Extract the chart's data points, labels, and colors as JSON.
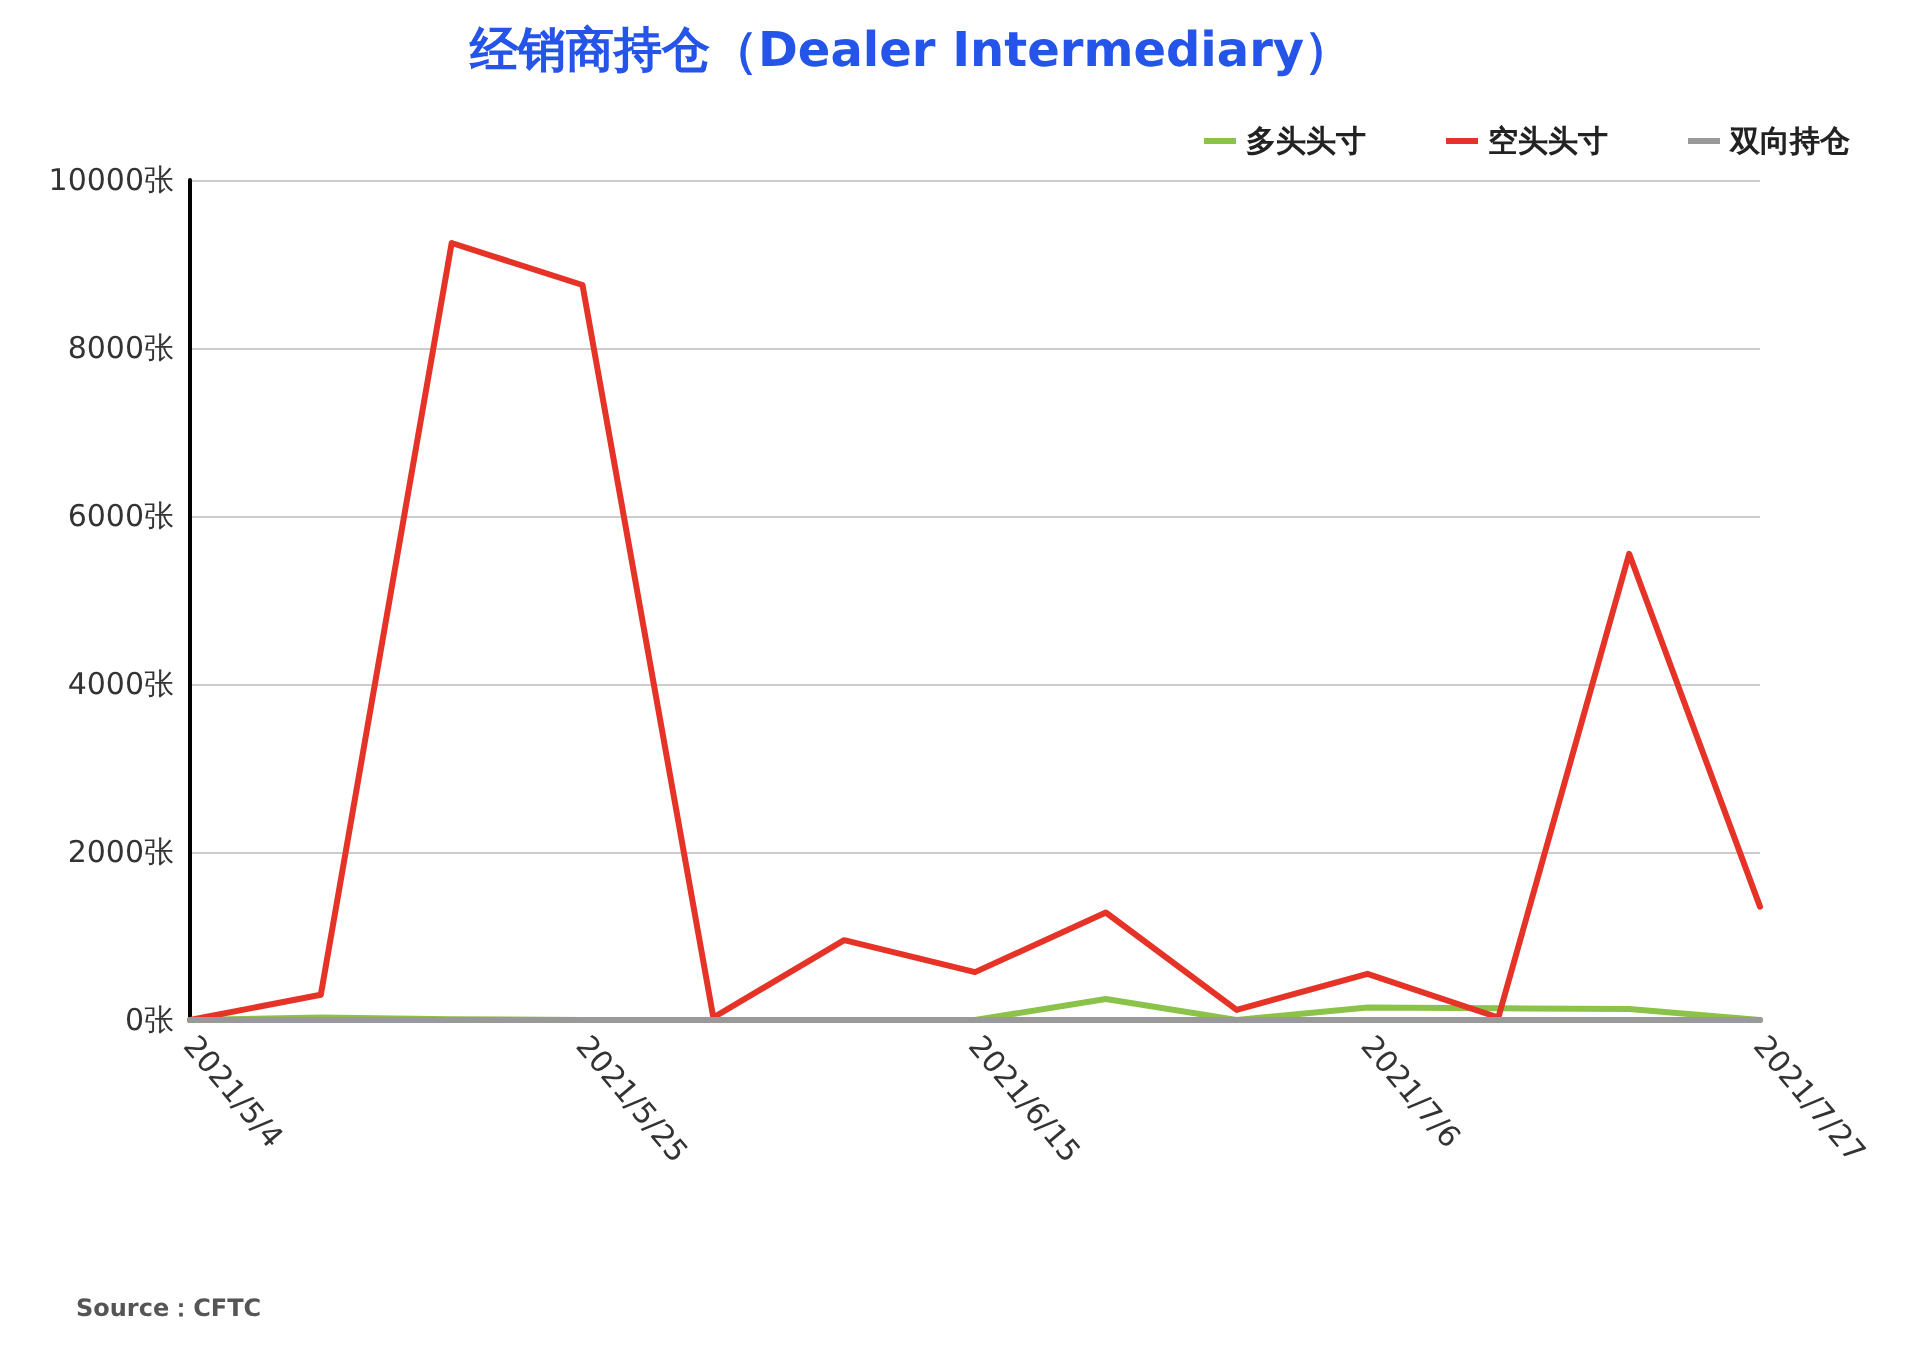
{
  "chart_data": {
    "type": "line",
    "title": "经销商持仓（Dealer Intermediary）",
    "categories": [
      "2021/5/4",
      null,
      null,
      "2021/5/25",
      null,
      null,
      "2021/6/15",
      null,
      null,
      "2021/7/6",
      null,
      null,
      "2021/7/27"
    ],
    "series": [
      {
        "name": "多头头寸",
        "color": "#8bc34a",
        "values": [
          0,
          30,
          10,
          0,
          0,
          0,
          0,
          250,
          0,
          150,
          140,
          130,
          0
        ]
      },
      {
        "name": "空头头寸",
        "color": "#e53327",
        "values": [
          0,
          300,
          9250,
          8750,
          30,
          950,
          570,
          1280,
          120,
          550,
          30,
          5550,
          1350
        ]
      },
      {
        "name": "双向持仓",
        "color": "#999999",
        "values": [
          0,
          0,
          0,
          0,
          0,
          0,
          0,
          0,
          0,
          0,
          0,
          0,
          0
        ]
      }
    ],
    "ylim": [
      0,
      10000
    ],
    "yticks": [
      {
        "value": 0,
        "label": "0张"
      },
      {
        "value": 2000,
        "label": "2000张"
      },
      {
        "value": 4000,
        "label": "4000张"
      },
      {
        "value": 6000,
        "label": "6000张"
      },
      {
        "value": 8000,
        "label": "8000张"
      },
      {
        "value": 10000,
        "label": "10000张"
      }
    ],
    "grid": "y",
    "legend": "top right",
    "marker": "none",
    "line_style": "solid",
    "annotations": [
      "Source：CFTC"
    ]
  }
}
